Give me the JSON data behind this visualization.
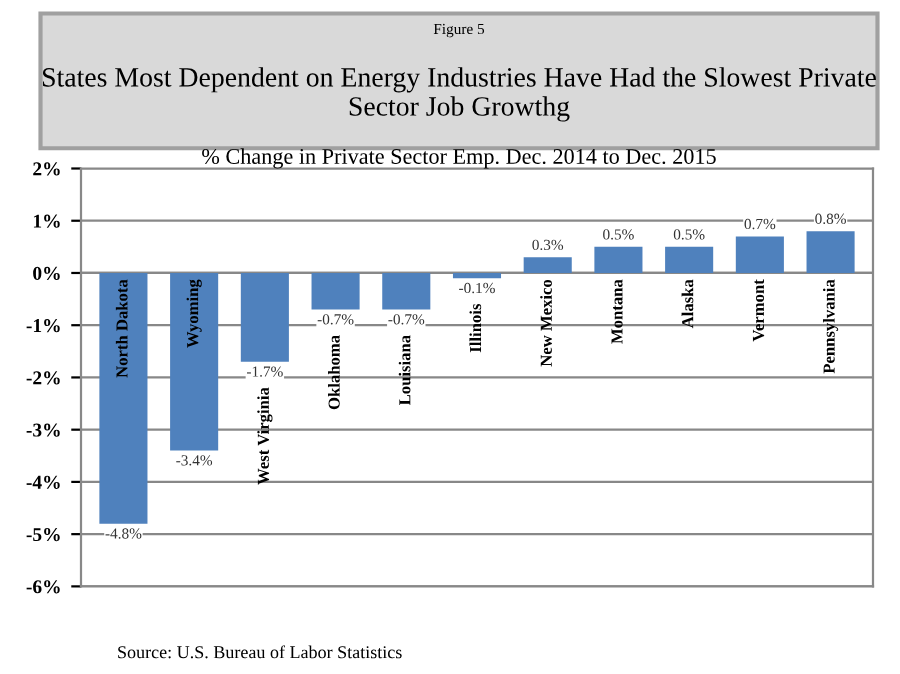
{
  "chart_data": {
    "type": "bar",
    "title": "States Most Dependent on Energy Industries Have Had the Slowest Private Sector Job Growthg",
    "subtitle": "% Change in Private Sector Emp. Dec. 2014 to Dec. 2015",
    "annotations": [
      "Figure 5",
      "Source: U.S. Bureau of Labor Statistics"
    ],
    "categories": [
      "North Dakota",
      "Wyoming",
      "West Virginia",
      "Oklahoma",
      "Louisiana",
      "Illinois",
      "New Mexico",
      "Montana",
      "Alaska",
      "Vermont",
      "Pennsylvania"
    ],
    "values": [
      -4.8,
      -3.4,
      -1.7,
      -0.7,
      -0.7,
      -0.1,
      0.3,
      0.5,
      0.5,
      0.7,
      0.8
    ],
    "value_labels": [
      "-4.8%",
      "-3.4%",
      "-1.7%",
      "-0.7%",
      "-0.7%",
      "-0.1%",
      "0.3%",
      "0.5%",
      "0.5%",
      "0.7%",
      "0.8%"
    ],
    "color": "#4f81bd",
    "ylim": [
      -6,
      2
    ],
    "yticks": [
      {
        "value": -6,
        "label": "-6%"
      },
      {
        "value": -5,
        "label": "-5%"
      },
      {
        "value": -4,
        "label": "-4%"
      },
      {
        "value": -3,
        "label": "-3%"
      },
      {
        "value": -2,
        "label": "-2%"
      },
      {
        "value": -1,
        "label": "-1%"
      },
      {
        "value": 0,
        "label": "0%"
      },
      {
        "value": 1,
        "label": "1%"
      },
      {
        "value": 2,
        "label": "2%"
      }
    ],
    "grid": "y",
    "legend": false
  }
}
